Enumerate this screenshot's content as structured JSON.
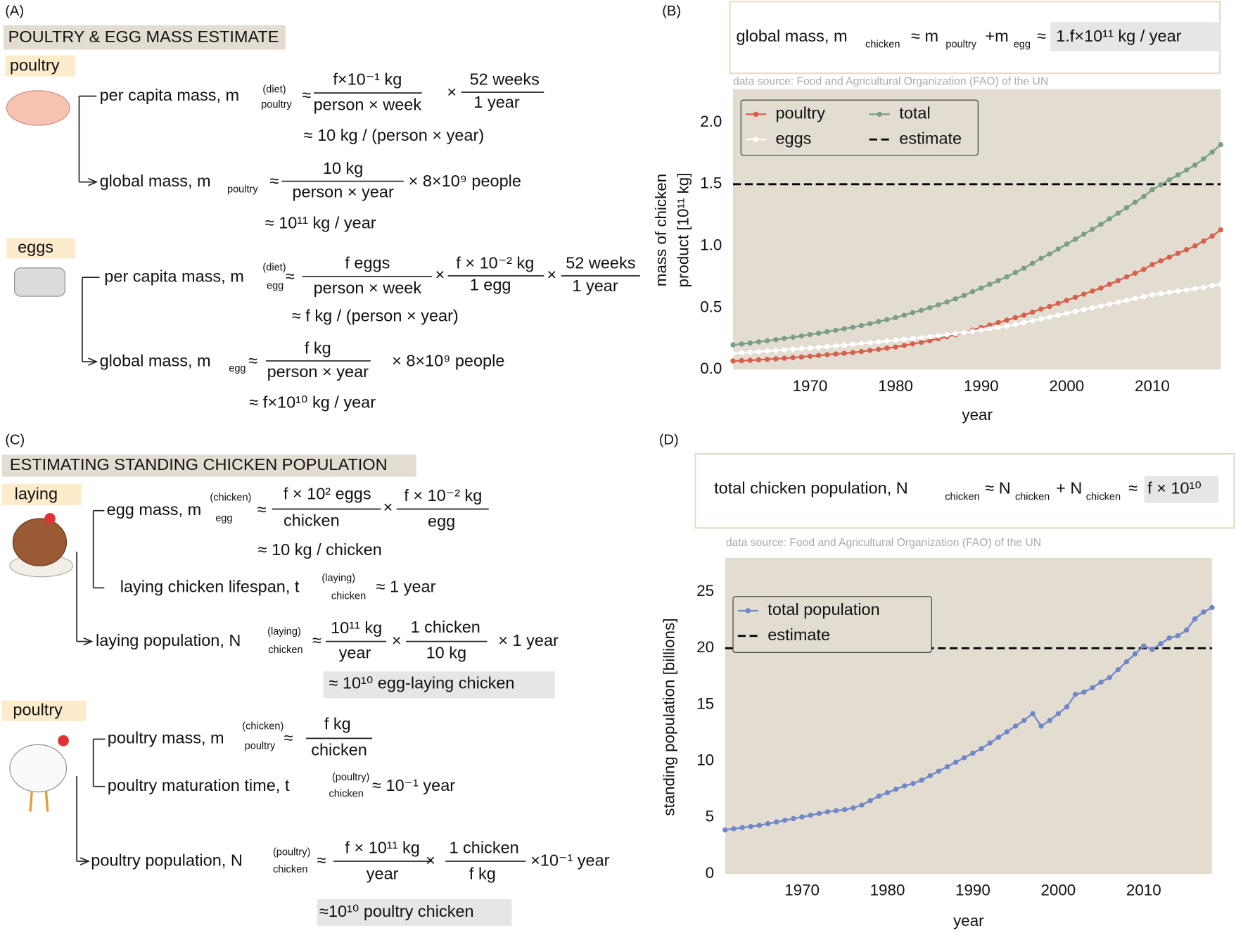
{
  "panel_a": {
    "texts": [
      "(A)",
      "POULTRY & EGG MASS ESTIMATE",
      "poultry",
      "per capita mass, m",
      "(diet)",
      "poultry",
      "≈",
      "f×10⁻¹ kg",
      "person × week",
      "×",
      "52 weeks",
      "1 year",
      "≈ 10 kg / (person × year)",
      "global mass, m",
      "poultry",
      "≈",
      "10 kg",
      "person × year",
      "× 8×10⁹ people",
      "≈ 10¹¹ kg / year",
      "eggs",
      "per capita mass, m",
      "(diet)",
      "egg",
      "≈",
      "f eggs",
      "person × week",
      "×",
      "f × 10⁻² kg",
      "1 egg",
      "×",
      "52 weeks",
      "1 year",
      "≈ f kg / (person × year)",
      "global mass, m",
      "egg",
      "≈",
      "f kg",
      "person × year",
      "× 8×10⁹ people",
      "≈ f×10¹⁰ kg / year"
    ]
  },
  "panel_c": {
    "texts": [
      "(C)",
      "ESTIMATING STANDING CHICKEN POPULATION",
      "laying",
      "egg mass, m",
      "(chicken)",
      "egg",
      "≈",
      "f × 10² eggs",
      "chicken",
      "×",
      "f × 10⁻² kg",
      "egg",
      "≈ 10 kg / chicken",
      "laying chicken lifespan, t",
      "(laying)",
      "chicken",
      "≈ 1 year",
      "laying population, N",
      "(laying)",
      "chicken",
      "≈",
      "10¹¹ kg",
      "year",
      "×",
      "1 chicken",
      "10 kg",
      "× 1 year",
      "≈ 10¹⁰ egg-laying chicken",
      "poultry",
      "poultry mass, m",
      "(chicken)",
      "poultry",
      "≈",
      "f kg",
      "chicken",
      "poultry maturation time, t",
      "(poultry)",
      "chicken",
      "≈ 10⁻¹ year",
      "poultry population, N",
      "(poultry)",
      "chicken",
      "≈",
      "f × 10¹¹ kg",
      "year",
      "×",
      "1 chicken",
      "f kg",
      "×10⁻¹ year",
      "≈10¹⁰ poultry chicken"
    ]
  },
  "chart_data": [
    {
      "type": "line",
      "label": "(B)",
      "formula": [
        "global mass, m",
        "chicken",
        "≈ m",
        "poultry",
        "+m",
        "egg",
        "≈",
        "1.f×10¹¹ kg / year"
      ],
      "source": "data source: Food and Agricultural Organization (FAO) of the UN",
      "xlabel": "year",
      "ylabel": [
        "mass of chicken",
        "product [10¹¹ kg]"
      ],
      "x": [
        1961,
        1962,
        1963,
        1964,
        1965,
        1966,
        1967,
        1968,
        1969,
        1970,
        1971,
        1972,
        1973,
        1974,
        1975,
        1976,
        1977,
        1978,
        1979,
        1980,
        1981,
        1982,
        1983,
        1984,
        1985,
        1986,
        1987,
        1988,
        1989,
        1990,
        1991,
        1992,
        1993,
        1994,
        1995,
        1996,
        1997,
        1998,
        1999,
        2000,
        2001,
        2002,
        2003,
        2004,
        2005,
        2006,
        2007,
        2008,
        2009,
        2010,
        2011,
        2012,
        2013,
        2014,
        2015,
        2016,
        2017,
        2018
      ],
      "series": [
        {
          "name": "poultry",
          "color": "#d6604d",
          "values": [
            0.07,
            0.072,
            0.075,
            0.079,
            0.083,
            0.087,
            0.092,
            0.097,
            0.102,
            0.108,
            0.114,
            0.12,
            0.126,
            0.132,
            0.138,
            0.146,
            0.155,
            0.164,
            0.173,
            0.182,
            0.195,
            0.208,
            0.22,
            0.234,
            0.25,
            0.265,
            0.282,
            0.3,
            0.32,
            0.34,
            0.36,
            0.38,
            0.4,
            0.42,
            0.44,
            0.465,
            0.49,
            0.51,
            0.535,
            0.56,
            0.585,
            0.61,
            0.635,
            0.66,
            0.69,
            0.72,
            0.75,
            0.78,
            0.81,
            0.85,
            0.88,
            0.91,
            0.94,
            0.97,
            1.0,
            1.04,
            1.08,
            1.13
          ]
        },
        {
          "name": "eggs",
          "color": "#ffffff",
          "values": [
            0.13,
            0.135,
            0.14,
            0.145,
            0.15,
            0.155,
            0.16,
            0.165,
            0.17,
            0.175,
            0.18,
            0.186,
            0.192,
            0.198,
            0.204,
            0.21,
            0.217,
            0.224,
            0.231,
            0.238,
            0.245,
            0.252,
            0.259,
            0.266,
            0.274,
            0.282,
            0.29,
            0.3,
            0.31,
            0.32,
            0.33,
            0.34,
            0.35,
            0.365,
            0.38,
            0.395,
            0.41,
            0.425,
            0.44,
            0.455,
            0.47,
            0.485,
            0.5,
            0.515,
            0.53,
            0.545,
            0.56,
            0.575,
            0.59,
            0.605,
            0.615,
            0.625,
            0.635,
            0.645,
            0.655,
            0.665,
            0.68,
            0.69
          ]
        },
        {
          "name": "total",
          "color": "#7a9e87",
          "values": [
            0.2,
            0.207,
            0.215,
            0.224,
            0.233,
            0.242,
            0.252,
            0.262,
            0.272,
            0.283,
            0.294,
            0.306,
            0.318,
            0.33,
            0.342,
            0.356,
            0.372,
            0.388,
            0.404,
            0.42,
            0.44,
            0.46,
            0.479,
            0.5,
            0.524,
            0.547,
            0.572,
            0.6,
            0.63,
            0.66,
            0.69,
            0.72,
            0.75,
            0.785,
            0.82,
            0.86,
            0.9,
            0.935,
            0.975,
            1.015,
            1.055,
            1.095,
            1.135,
            1.175,
            1.22,
            1.265,
            1.31,
            1.355,
            1.4,
            1.455,
            1.495,
            1.535,
            1.575,
            1.615,
            1.655,
            1.705,
            1.76,
            1.82
          ]
        }
      ],
      "reference_lines": [
        {
          "name": "estimate",
          "value": 1.5,
          "color": "#000000"
        }
      ],
      "xlim": [
        1961,
        2018
      ],
      "xticks": [
        1970,
        1980,
        1990,
        2000,
        2010
      ],
      "ylim": [
        0,
        2.27
      ],
      "yticks": [
        {
          "value": 0,
          "label": "0.0"
        },
        0.5,
        {
          "value": 1,
          "label": "1.0"
        },
        1.5,
        {
          "value": 2,
          "label": "2.0"
        }
      ],
      "grid": false,
      "background": "#e3ddd1"
    },
    {
      "type": "line",
      "label": "(D)",
      "formula": [
        "total chicken population, N",
        "chicken",
        "≈ N",
        "chicken",
        "+ N",
        "chicken",
        "≈",
        "f × 10¹⁰"
      ],
      "source": "data source: Food and Agricultural Organization (FAO) of the UN",
      "xlabel": "year",
      "ylabel": [
        "standing population [billions]"
      ],
      "x": [
        1961,
        1962,
        1963,
        1964,
        1965,
        1966,
        1967,
        1968,
        1969,
        1970,
        1971,
        1972,
        1973,
        1974,
        1975,
        1976,
        1977,
        1978,
        1979,
        1980,
        1981,
        1982,
        1983,
        1984,
        1985,
        1986,
        1987,
        1988,
        1989,
        1990,
        1991,
        1992,
        1993,
        1994,
        1995,
        1996,
        1997,
        1998,
        1999,
        2000,
        2001,
        2002,
        2003,
        2004,
        2005,
        2006,
        2007,
        2008,
        2009,
        2010,
        2011,
        2012,
        2013,
        2014,
        2015,
        2016,
        2017,
        2018
      ],
      "series": [
        {
          "name": "total population",
          "color": "#6f86c7",
          "values": [
            3.9,
            4.0,
            4.1,
            4.2,
            4.3,
            4.45,
            4.6,
            4.75,
            4.9,
            5.05,
            5.2,
            5.35,
            5.5,
            5.6,
            5.7,
            5.85,
            6.1,
            6.5,
            6.9,
            7.2,
            7.5,
            7.8,
            8.0,
            8.3,
            8.7,
            9.1,
            9.5,
            9.9,
            10.3,
            10.7,
            11.1,
            11.6,
            12.1,
            12.6,
            13.1,
            13.6,
            14.2,
            13.1,
            13.6,
            14.2,
            14.8,
            15.9,
            16.1,
            16.5,
            17.0,
            17.4,
            18.1,
            18.8,
            19.5,
            20.2,
            19.9,
            20.4,
            20.9,
            21.1,
            21.6,
            22.6,
            23.2,
            23.6
          ]
        }
      ],
      "reference_lines": [
        {
          "name": "estimate",
          "value": 20,
          "color": "#000000"
        }
      ],
      "xlim": [
        1961,
        2018
      ],
      "xticks": [
        1970,
        1980,
        1990,
        2000,
        2010
      ],
      "ylim": [
        0,
        28
      ],
      "yticks": [
        0,
        5,
        10,
        15,
        20,
        25
      ],
      "grid": false,
      "background": "#e3ddd1"
    }
  ]
}
